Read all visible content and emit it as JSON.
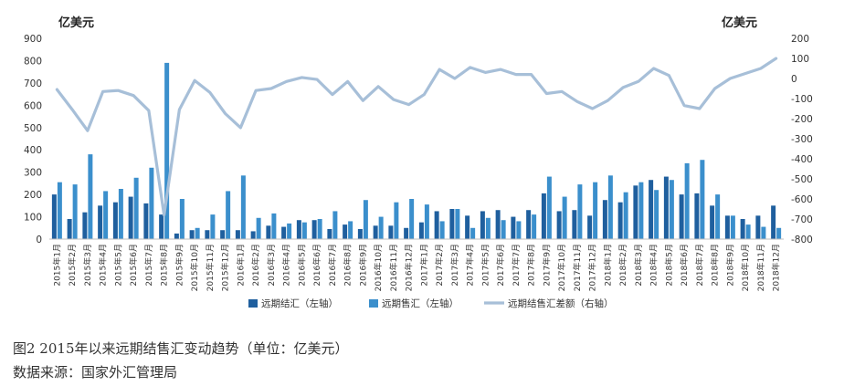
{
  "chart_data": {
    "type": "bar+line",
    "title": "",
    "left_axis_unit": "亿美元",
    "right_axis_unit": "亿美元",
    "ylim_left": [
      0,
      900
    ],
    "yticks_left": [
      0,
      100,
      200,
      300,
      400,
      500,
      600,
      700,
      800,
      900
    ],
    "ylim_right": [
      -800,
      200
    ],
    "yticks_right": [
      -800,
      -700,
      -600,
      -500,
      -400,
      -300,
      -200,
      -100,
      0,
      100,
      200
    ],
    "grid": false,
    "legend_position": "bottom",
    "categories": [
      "2015年1月",
      "2015年2月",
      "2015年3月",
      "2015年4月",
      "2015年5月",
      "2015年6月",
      "2015年7月",
      "2015年8月",
      "2015年9月",
      "2015年10月",
      "2015年11月",
      "2015年12月",
      "2016年1月",
      "2016年2月",
      "2016年3月",
      "2016年4月",
      "2016年5月",
      "2016年6月",
      "2016年7月",
      "2016年8月",
      "2016年9月",
      "2016年10月",
      "2016年11月",
      "2016年12月",
      "2017年1月",
      "2017年2月",
      "2017年3月",
      "2017年4月",
      "2017年5月",
      "2017年6月",
      "2017年7月",
      "2017年8月",
      "2017年9月",
      "2017年10月",
      "2017年11月",
      "2017年12月",
      "2018年1月",
      "2018年2月",
      "2018年3月",
      "2018年4月",
      "2018年5月",
      "2018年6月",
      "2018年7月",
      "2018年8月",
      "2018年9月",
      "2018年10月",
      "2018年11月",
      "2018年12月"
    ],
    "series": [
      {
        "name": "远期结汇（左轴）",
        "type": "bar",
        "axis": "left",
        "color": "#1f5f9e",
        "values": [
          200,
          90,
          120,
          150,
          165,
          190,
          160,
          110,
          25,
          40,
          40,
          40,
          40,
          35,
          60,
          55,
          85,
          85,
          45,
          65,
          45,
          60,
          60,
          50,
          75,
          125,
          135,
          105,
          125,
          130,
          100,
          130,
          205,
          125,
          130,
          105,
          175,
          165,
          240,
          265,
          280,
          200,
          205,
          150,
          105,
          90,
          105,
          150
        ]
      },
      {
        "name": "远期售汇（左轴）",
        "type": "bar",
        "axis": "left",
        "color": "#3b8fcc",
        "values": [
          255,
          245,
          380,
          215,
          225,
          275,
          320,
          790,
          180,
          50,
          110,
          215,
          285,
          95,
          115,
          70,
          75,
          90,
          125,
          80,
          175,
          100,
          165,
          180,
          155,
          80,
          135,
          50,
          95,
          85,
          80,
          110,
          280,
          190,
          245,
          255,
          285,
          210,
          255,
          220,
          265,
          340,
          355,
          200,
          105,
          65,
          55,
          50
        ]
      },
      {
        "name": "远期结售汇差额（右轴）",
        "type": "line",
        "axis": "right",
        "color": "#a7bfd8",
        "values": [
          -55,
          -155,
          -260,
          -65,
          -60,
          -85,
          -160,
          -680,
          -155,
          -10,
          -70,
          -175,
          -245,
          -60,
          -50,
          -15,
          5,
          -5,
          -80,
          -15,
          -110,
          -40,
          -105,
          -130,
          -80,
          45,
          0,
          55,
          30,
          45,
          20,
          20,
          -75,
          -65,
          -115,
          -150,
          -110,
          -45,
          -15,
          50,
          15,
          -135,
          -150,
          -50,
          0,
          25,
          50,
          100
        ]
      }
    ]
  },
  "caption": {
    "title": "图2   2015年以来远期结售汇变动趋势（单位：亿美元）",
    "source": "数据来源：国家外汇管理局"
  }
}
